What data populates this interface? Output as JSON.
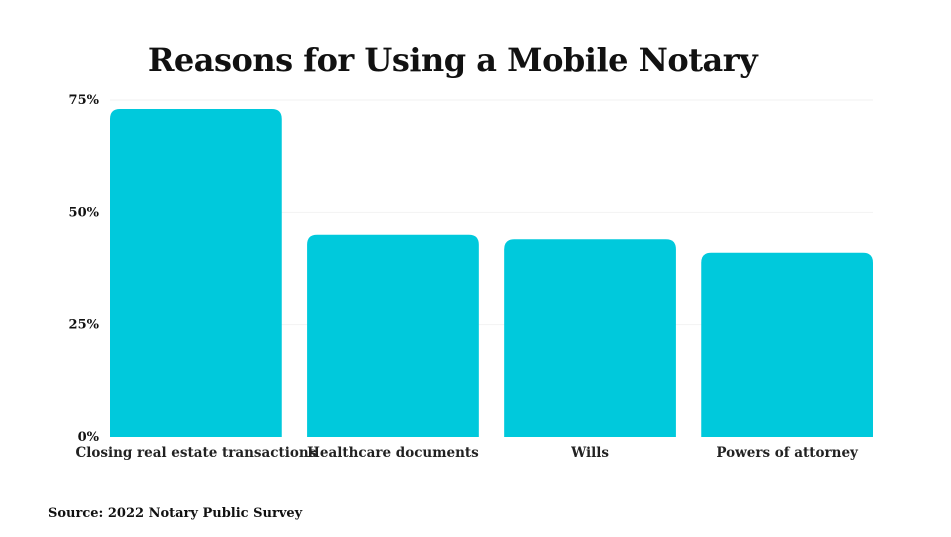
{
  "chart_data": {
    "type": "bar",
    "title": "Reasons for Using a Mobile Notary",
    "categories": [
      "Closing real estate transactions",
      "Healthcare documents",
      "Wills",
      "Powers of attorney"
    ],
    "values": [
      73,
      45,
      44,
      41
    ],
    "ylim": [
      0,
      75
    ],
    "yticks": [
      0,
      25,
      50,
      75
    ],
    "ytick_labels": [
      "0%",
      "25%",
      "50%",
      "75%"
    ],
    "xlabel": "",
    "ylabel": "",
    "grid": true,
    "legend": "none",
    "bar_color": "#00C9DC",
    "gridline_color": "#F2F2F2",
    "source": "Source: 2022 Notary Public Survey"
  }
}
